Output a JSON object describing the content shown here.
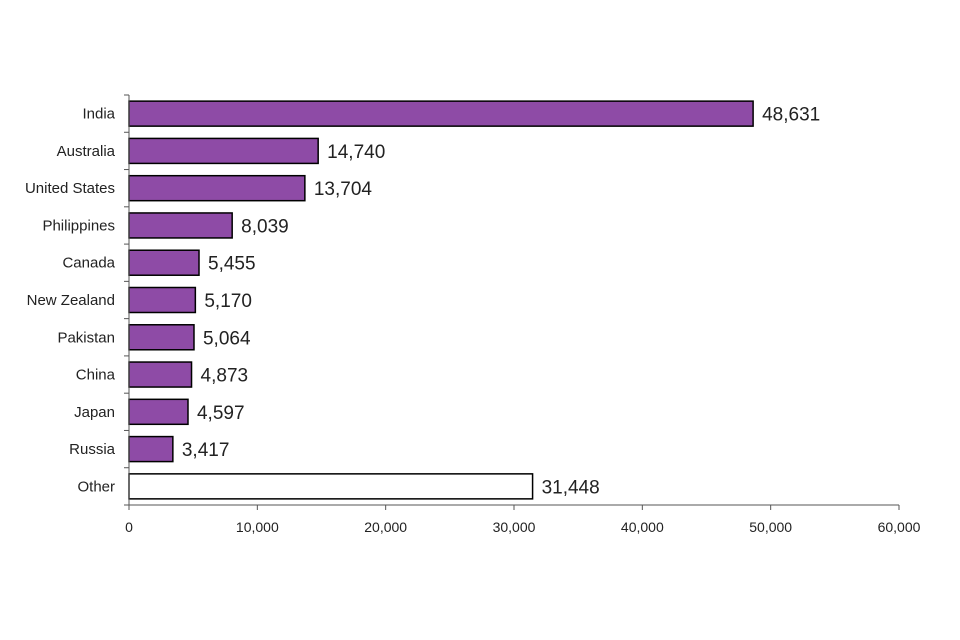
{
  "chart_data": {
    "type": "bar",
    "orientation": "horizontal",
    "categories": [
      "India",
      "Australia",
      "United States",
      "Philippines",
      "Canada",
      "New Zealand",
      "Pakistan",
      "China",
      "Japan",
      "Russia",
      "Other"
    ],
    "values": [
      48631,
      14740,
      13704,
      8039,
      5455,
      5170,
      5064,
      4873,
      4597,
      3417,
      31448
    ],
    "value_labels": [
      "48,631",
      "14,740",
      "13,704",
      "8,039",
      "5,455",
      "5,170",
      "5,064",
      "4,873",
      "4,597",
      "3,417",
      "31,448"
    ],
    "xlim": [
      0,
      60000
    ],
    "x_ticks": [
      0,
      10000,
      20000,
      30000,
      40000,
      50000,
      60000
    ],
    "x_tick_labels": [
      "0",
      "10,000",
      "20,000",
      "30,000",
      "40,000",
      "50,000",
      "60,000"
    ],
    "title": "",
    "xlabel": "",
    "ylabel": "",
    "grid": false,
    "colors": {
      "bar_fill": "#8e4ba6",
      "other_fill": "#ffffff",
      "bar_stroke": "#000000"
    }
  }
}
